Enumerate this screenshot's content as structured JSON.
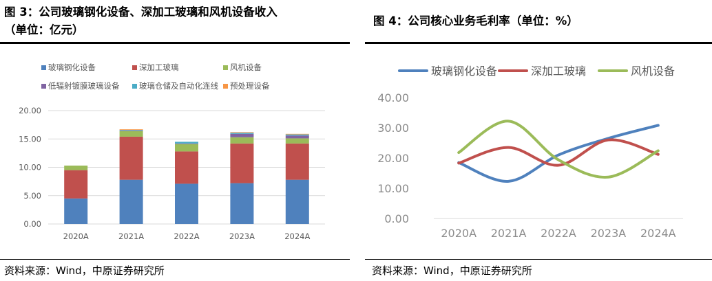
{
  "left": {
    "title_line1": "图 3：公司玻璃钢化设备、深加工玻璃和风机设备收入",
    "title_line2": "（单位：亿元）",
    "source": "资料来源：Wind，中原证券研究所"
  },
  "right": {
    "title": "图 4：公司核心业务毛利率（单位：%）",
    "source": "资料来源：Wind，中原证券研究所"
  },
  "chart_data": [
    {
      "type": "bar",
      "stacked": true,
      "title": "",
      "categories": [
        "2020A",
        "2021A",
        "2022A",
        "2023A",
        "2024A"
      ],
      "ylim": [
        0,
        20
      ],
      "yticks": [
        "0.00",
        "5.00",
        "10.00",
        "15.00",
        "20.00"
      ],
      "grid": true,
      "legend_position": "top",
      "series": [
        {
          "name": "玻璃钢化设备",
          "color": "#4f81bd",
          "values": [
            4.5,
            7.8,
            7.1,
            7.2,
            7.8
          ]
        },
        {
          "name": "深加工玻璃",
          "color": "#c0504d",
          "values": [
            5.0,
            7.6,
            5.7,
            7.0,
            6.4
          ]
        },
        {
          "name": "风机设备",
          "color": "#9bbb59",
          "values": [
            0.8,
            1.0,
            1.3,
            1.1,
            0.9
          ]
        },
        {
          "name": "低辐射镀膜玻璃设备",
          "color": "#8064a2",
          "values": [
            0.0,
            0.1,
            0.1,
            0.6,
            0.5
          ]
        },
        {
          "name": "玻璃仓储及自动化连线",
          "color": "#4bacc6",
          "values": [
            0.0,
            0.1,
            0.3,
            0.2,
            0.2
          ]
        },
        {
          "name": "预处理设备",
          "color": "#f79646",
          "values": [
            0.0,
            0.1,
            0.0,
            0.1,
            0.1
          ]
        }
      ]
    },
    {
      "type": "line",
      "smooth": true,
      "title": "",
      "categories": [
        "2020A",
        "2021A",
        "2022A",
        "2023A",
        "2024A"
      ],
      "ylim": [
        0,
        40
      ],
      "yticks": [
        "0.00",
        "10.00",
        "20.00",
        "30.00",
        "40.00"
      ],
      "grid": false,
      "legend_position": "top",
      "series": [
        {
          "name": "玻璃钢化设备",
          "color": "#4f81bd",
          "values": [
            18.5,
            12.3,
            21.0,
            26.5,
            30.8
          ]
        },
        {
          "name": "深加工玻璃",
          "color": "#c0504d",
          "values": [
            18.3,
            23.5,
            17.6,
            26.0,
            21.2
          ]
        },
        {
          "name": "风机设备",
          "color": "#9bbb59",
          "values": [
            21.8,
            32.2,
            19.4,
            13.7,
            22.4
          ]
        }
      ]
    }
  ]
}
